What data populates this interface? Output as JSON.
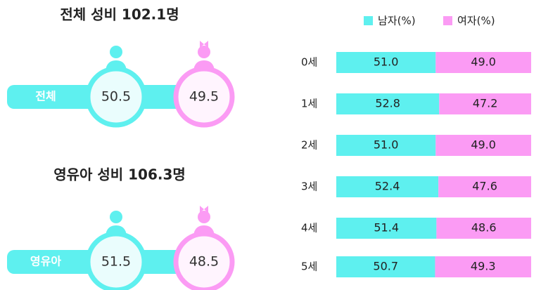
{
  "panels": [
    {
      "title": "전체 성비 102.1명",
      "label": "전체",
      "male": 50.5,
      "female": 49.5
    },
    {
      "title": "영유아 성비 106.3명",
      "label": "영유아",
      "male": 51.5,
      "female": 48.5
    }
  ],
  "chart_data": {
    "type": "bar",
    "orientation": "horizontal",
    "stacked": true,
    "categories": [
      "0세",
      "1세",
      "2세",
      "3세",
      "4세",
      "5세"
    ],
    "series": [
      {
        "name": "남자(%)",
        "color": "#5ef0ef",
        "values": [
          51.0,
          52.8,
          51.0,
          52.4,
          51.4,
          50.7
        ],
        "value_labels": [
          "51.0",
          "52.8",
          "51.0",
          "52.4",
          "51.4",
          "50.7"
        ]
      },
      {
        "name": "여자(%)",
        "color": "#fb9bf4",
        "values": [
          49.0,
          47.2,
          49.0,
          47.6,
          48.6,
          49.3
        ],
        "value_labels": [
          "49.0",
          "47.2",
          "49.0",
          "47.6",
          "48.6",
          "49.3"
        ]
      }
    ],
    "xlim": [
      0,
      100
    ],
    "legend": "top"
  }
}
